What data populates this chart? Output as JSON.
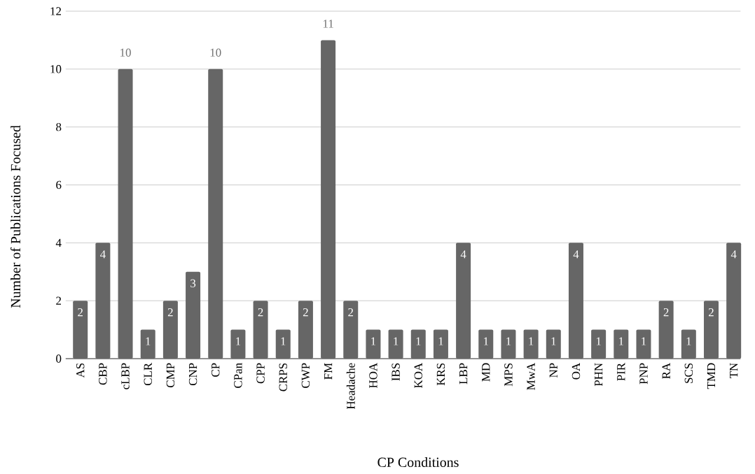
{
  "chart_data": {
    "type": "bar",
    "xlabel": "CP Conditions",
    "ylabel": "Number of Publications Focused",
    "categories": [
      "AS",
      "CBP",
      "cLBP",
      "CLR",
      "CMP",
      "CNP",
      "CP",
      "CPan",
      "CPP",
      "CRPS",
      "CWP",
      "FM",
      "Headache",
      "HOA",
      "IBS",
      "KOA",
      "KRS",
      "LBP",
      "MD",
      "MPS",
      "MwA",
      "NP",
      "OA",
      "PHN",
      "PIR",
      "PNP",
      "RA",
      "SCS",
      "TMD",
      "TN"
    ],
    "values": [
      2,
      4,
      10,
      1,
      2,
      3,
      10,
      1,
      2,
      1,
      2,
      11,
      2,
      1,
      1,
      1,
      1,
      4,
      1,
      1,
      1,
      1,
      4,
      1,
      1,
      1,
      2,
      1,
      2,
      4
    ],
    "color": "#666666",
    "ylim": [
      0,
      12
    ],
    "yticks": [
      0,
      2,
      4,
      6,
      8,
      10,
      12
    ],
    "grid": "y",
    "data_labels": true
  }
}
